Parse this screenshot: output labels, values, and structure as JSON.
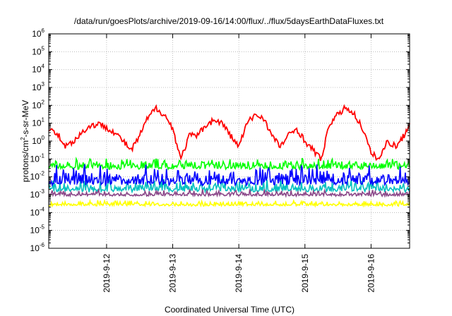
{
  "chart_data": {
    "type": "line",
    "title": "/data/run/goesPlots/archive/2019-09-16/14:00/flux/../flux/5daysEarthDataFluxes.txt",
    "xlabel": "Coordinated Universal Time (UTC)",
    "ylabel": "protons/cm²-s-sr-MeV",
    "ylabel_parts": [
      "protons/cm",
      "2",
      "-s-sr-MeV"
    ],
    "yscale": "log",
    "ylim": [
      1e-06,
      1000000.0
    ],
    "y_ticks": [
      {
        "base": "10",
        "exp": "-6",
        "value": 1e-06
      },
      {
        "base": "10",
        "exp": "-5",
        "value": 1e-05
      },
      {
        "base": "10",
        "exp": "-4",
        "value": 0.0001
      },
      {
        "base": "10",
        "exp": "-3",
        "value": 0.001
      },
      {
        "base": "10",
        "exp": "-2",
        "value": 0.01
      },
      {
        "base": "10",
        "exp": "-1",
        "value": 0.1
      },
      {
        "base": "10",
        "exp": "0",
        "value": 1
      },
      {
        "base": "10",
        "exp": "1",
        "value": 10
      },
      {
        "base": "10",
        "exp": "2",
        "value": 100
      },
      {
        "base": "10",
        "exp": "3",
        "value": 1000
      },
      {
        "base": "10",
        "exp": "4",
        "value": 10000
      },
      {
        "base": "10",
        "exp": "5",
        "value": 100000
      },
      {
        "base": "10",
        "exp": "6",
        "value": 1000000
      }
    ],
    "xlim": [
      "2019-09-11 03:00",
      "2019-09-16 14:00"
    ],
    "x_ticks": [
      "2019-9-12",
      "2019-9-13",
      "2019-9-14",
      "2019-9-15",
      "2019-9-16"
    ],
    "x_tick_dates": [
      "2019-09-12 00:00",
      "2019-09-13 00:00",
      "2019-09-14 00:00",
      "2019-09-15 00:00",
      "2019-09-16 00:00"
    ],
    "grid": true,
    "series": [
      {
        "color": "#ff0000",
        "x": [
          "2019-09-11 03:00",
          "2019-09-11 06:00",
          "2019-09-11 09:00",
          "2019-09-11 12:00",
          "2019-09-11 15:00",
          "2019-09-11 18:00",
          "2019-09-11 21:00",
          "2019-09-12 00:00",
          "2019-09-12 03:00",
          "2019-09-12 06:00",
          "2019-09-12 09:00",
          "2019-09-12 12:00",
          "2019-09-12 15:00",
          "2019-09-12 18:00",
          "2019-09-12 21:00",
          "2019-09-13 00:00",
          "2019-09-13 03:00",
          "2019-09-13 06:00",
          "2019-09-13 09:00",
          "2019-09-13 12:00",
          "2019-09-13 15:00",
          "2019-09-13 18:00",
          "2019-09-13 21:00",
          "2019-09-14 00:00",
          "2019-09-14 03:00",
          "2019-09-14 06:00",
          "2019-09-14 09:00",
          "2019-09-14 12:00",
          "2019-09-14 15:00",
          "2019-09-14 18:00",
          "2019-09-14 21:00",
          "2019-09-15 00:00",
          "2019-09-15 03:00",
          "2019-09-15 06:00",
          "2019-09-15 09:00",
          "2019-09-15 12:00",
          "2019-09-15 15:00",
          "2019-09-15 18:00",
          "2019-09-15 21:00",
          "2019-09-16 00:00",
          "2019-09-16 03:00",
          "2019-09-16 06:00",
          "2019-09-16 09:00",
          "2019-09-16 12:00",
          "2019-09-16 14:00"
        ],
        "y": [
          5,
          3,
          0.5,
          1,
          3,
          7,
          9,
          6,
          3,
          1,
          0.3,
          2,
          20,
          70,
          30,
          5,
          0.1,
          2,
          2,
          8,
          15,
          10,
          2,
          0.5,
          10,
          30,
          20,
          2,
          0.5,
          2,
          5,
          1,
          0.3,
          0.1,
          10,
          30,
          80,
          30,
          5,
          0.2,
          0.1,
          1,
          0.5,
          2,
          10
        ]
      },
      {
        "color": "#00ff00",
        "band": [
          0.02,
          0.12
        ]
      },
      {
        "color": "#0000ff",
        "band": [
          0.002,
          0.05
        ]
      },
      {
        "color": "#00c0c0",
        "band": [
          0.001,
          0.008
        ]
      },
      {
        "color": "#8b4789",
        "band": [
          0.0007,
          0.002
        ]
      },
      {
        "color": "#ffff00",
        "band": [
          0.0002,
          0.0005
        ]
      }
    ]
  }
}
